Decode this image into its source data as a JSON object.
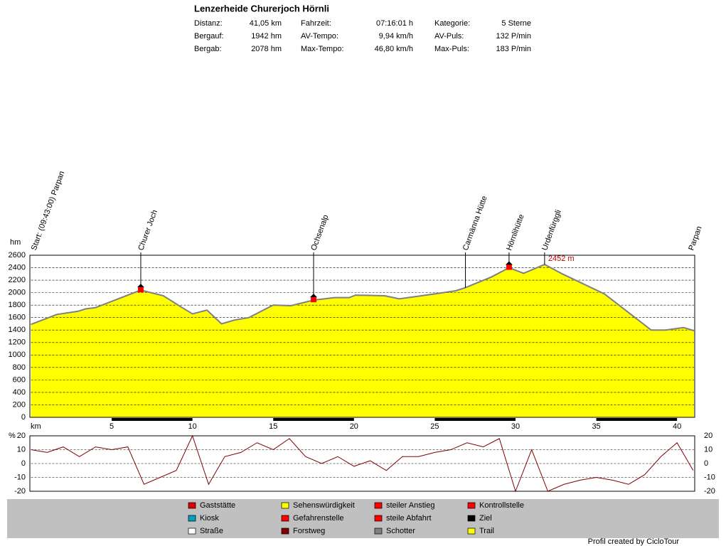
{
  "header": {
    "title": "Lenzerheide Churerjoch Hörnli",
    "rows": [
      [
        "Distanz:",
        "41,05 km",
        "Fahrzeit:",
        "07:16:01 h",
        "Kategorie:",
        "5 Sterne"
      ],
      [
        "Bergauf:",
        "1942 hm",
        "AV-Tempo:",
        "9,94 km/h",
        "AV-Puls:",
        "132 P/min"
      ],
      [
        "Bergab:",
        "2078 hm",
        "Max-Tempo:",
        "46,80 km/h",
        "Max-Puls:",
        "183 P/min"
      ]
    ]
  },
  "chart_data": [
    {
      "type": "area",
      "ylabel": "hm",
      "xlabel": "km",
      "color": "#ffff00",
      "line_color": "#808080",
      "grid": true,
      "x": [
        0,
        1.6,
        2.9,
        3.4,
        4.0,
        6.8,
        8.2,
        9.3,
        10,
        10.9,
        11.8,
        12.6,
        13.5,
        15,
        16.1,
        17.5,
        18.8,
        19.7,
        20.1,
        21.9,
        22.8,
        25,
        26.3,
        26.9,
        28.5,
        29.6,
        30.5,
        31.8,
        32.9,
        35.5,
        38.4,
        39.3,
        40.4,
        41.05
      ],
      "values": [
        1490,
        1650,
        1700,
        1740,
        1760,
        2040,
        1950,
        1770,
        1660,
        1720,
        1500,
        1560,
        1600,
        1800,
        1790,
        1880,
        1920,
        1920,
        1960,
        1950,
        1900,
        1980,
        2030,
        2080,
        2250,
        2400,
        2310,
        2452,
        2300,
        1980,
        1400,
        1400,
        1440,
        1390
      ],
      "xlim": [
        0,
        41.05
      ],
      "xticks": [
        5,
        10,
        15,
        20,
        25,
        30,
        35,
        40
      ],
      "ylim": [
        0,
        2600
      ],
      "yticks": [
        0,
        200,
        400,
        600,
        800,
        1000,
        1200,
        1400,
        1600,
        1800,
        2000,
        2200,
        2400,
        2600
      ],
      "waypoints": [
        {
          "label": "Start: (09:43:00) Parpan",
          "km": 0
        },
        {
          "label": "Churer Joch",
          "km": 6.8
        },
        {
          "label": "Ochsenalp",
          "km": 17.5
        },
        {
          "label": "Carmänna Hütte",
          "km": 26.9
        },
        {
          "label": "Hörnlihütte",
          "km": 29.6
        },
        {
          "label": "Urdenfürggli",
          "km": 31.8
        },
        {
          "label": "Parpan",
          "km": 41.05
        }
      ],
      "annotation": "2452 m"
    },
    {
      "type": "line",
      "yunit": "%",
      "color": "#800000",
      "grid": true,
      "x": [
        0,
        1,
        2,
        3,
        4,
        5,
        6,
        7,
        8,
        9,
        10,
        11,
        12,
        13,
        14,
        15,
        16,
        17,
        18,
        19,
        20,
        21,
        22,
        23,
        24,
        25,
        26,
        27,
        28,
        29,
        30,
        31,
        32,
        33,
        34,
        35,
        36,
        37,
        38,
        39,
        40,
        41
      ],
      "values": [
        10,
        8,
        12,
        5,
        12,
        10,
        12,
        -15,
        -10,
        -5,
        20,
        -15,
        5,
        8,
        15,
        10,
        18,
        5,
        0,
        5,
        -2,
        2,
        -5,
        5,
        5,
        8,
        10,
        15,
        12,
        18,
        -20,
        10,
        -20,
        -15,
        -12,
        -10,
        -12,
        -15,
        -8,
        5,
        15,
        -5
      ],
      "xlim": [
        0,
        41.05
      ],
      "ylim": [
        -20,
        20
      ],
      "yticks": [
        -20,
        -10,
        0,
        10,
        20
      ]
    }
  ],
  "legend": [
    [
      "Gaststätte",
      "Kiosk",
      "Straße"
    ],
    [
      "Sehenswürdigkeit",
      "Gefahrenstelle",
      "Forstweg"
    ],
    [
      "steiler Anstieg",
      "steile Abfahrt",
      "Schotter"
    ],
    [
      "Kontrollstelle",
      "Ziel",
      "Trail"
    ]
  ],
  "footer": "Profil created by CicloTour"
}
